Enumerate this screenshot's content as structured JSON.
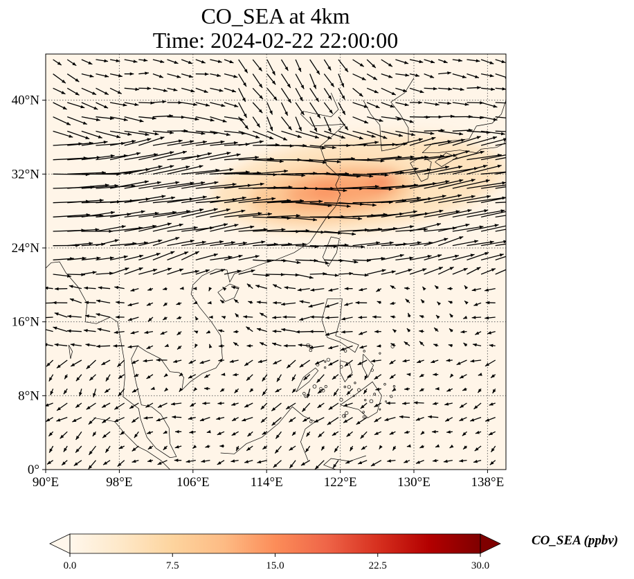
{
  "map": {
    "title_line_1": "CO_SEA at 4km",
    "title_line_2": "Time: 2024-02-22 22:00:00",
    "lon_range": [
      90,
      140
    ],
    "lat_range": [
      0,
      45
    ],
    "lon_ticks": [
      {
        "value": 90,
        "label": "90°E"
      },
      {
        "value": 98,
        "label": "98°E"
      },
      {
        "value": 106,
        "label": "106°E"
      },
      {
        "value": 114,
        "label": "114°E"
      },
      {
        "value": 122,
        "label": "122°E"
      },
      {
        "value": 130,
        "label": "130°E"
      },
      {
        "value": 138,
        "label": "138°E"
      }
    ],
    "lat_ticks": [
      {
        "value": 0,
        "label": "0°"
      },
      {
        "value": 8,
        "label": "8°N"
      },
      {
        "value": 16,
        "label": "16°N"
      },
      {
        "value": 24,
        "label": "24°N"
      },
      {
        "value": 32,
        "label": "32°N"
      },
      {
        "value": 40,
        "label": "40°N"
      }
    ],
    "gridlines": "dotted",
    "background_color": "#fff5e8",
    "concentration_bands": [
      {
        "lon": [
          108,
          140
        ],
        "lat": [
          26,
          36
        ],
        "level": 0.18
      },
      {
        "lon": [
          112,
          130
        ],
        "lat": [
          27,
          33
        ],
        "level": 0.32
      },
      {
        "lon": [
          116,
          128
        ],
        "lat": [
          28.5,
          32
        ],
        "level": 0.45
      },
      {
        "lon": [
          125,
          128
        ],
        "lat": [
          30.5,
          32
        ],
        "level": 0.55
      },
      {
        "lon": [
          119,
          122
        ],
        "lat": [
          29.5,
          31
        ],
        "level": 0.5
      }
    ],
    "wind_field_note": "Strong westerly winds north of ~20°N; weaker variable winds south."
  },
  "colorbar": {
    "label": "CO_SEA (ppbv)",
    "min": 0.0,
    "max": 30.0,
    "colormap": "OrRd",
    "extend": "both",
    "ticks": [
      "0.0",
      "7.5",
      "15.0",
      "22.5",
      "30.0"
    ],
    "colors": [
      "#fff7ec",
      "#fee8c8",
      "#fdd49e",
      "#fdbb84",
      "#fc8d59",
      "#ef6548",
      "#d7301f",
      "#b30000",
      "#7f0000"
    ]
  }
}
